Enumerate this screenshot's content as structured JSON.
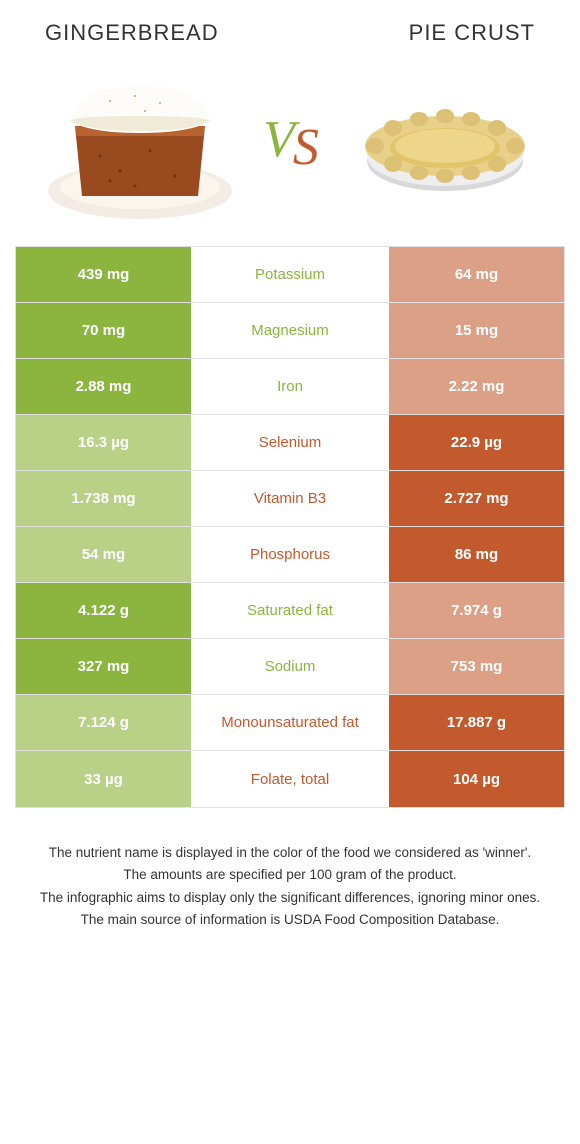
{
  "colors": {
    "left": "#8bb53f",
    "right": "#c25a2e",
    "left_dim": "#b8d186",
    "right_dim": "#dba085",
    "border": "#e0e0e0"
  },
  "header": {
    "left_title": "GINGERBREAD",
    "right_title": "PIE CRUST",
    "vs": "VS"
  },
  "rows": [
    {
      "label": "Potassium",
      "left": "439 mg",
      "right": "64 mg",
      "winner": "left"
    },
    {
      "label": "Magnesium",
      "left": "70 mg",
      "right": "15 mg",
      "winner": "left"
    },
    {
      "label": "Iron",
      "left": "2.88 mg",
      "right": "2.22 mg",
      "winner": "left"
    },
    {
      "label": "Selenium",
      "left": "16.3 µg",
      "right": "22.9 µg",
      "winner": "right"
    },
    {
      "label": "Vitamin B3",
      "left": "1.738 mg",
      "right": "2.727 mg",
      "winner": "right"
    },
    {
      "label": "Phosphorus",
      "left": "54 mg",
      "right": "86 mg",
      "winner": "right"
    },
    {
      "label": "Saturated fat",
      "left": "4.122 g",
      "right": "7.974 g",
      "winner": "left"
    },
    {
      "label": "Sodium",
      "left": "327 mg",
      "right": "753 mg",
      "winner": "left"
    },
    {
      "label": "Monounsaturated fat",
      "left": "7.124 g",
      "right": "17.887 g",
      "winner": "right"
    },
    {
      "label": "Folate, total",
      "left": "33 µg",
      "right": "104 µg",
      "winner": "right"
    }
  ],
  "footnotes": [
    "The nutrient name is displayed in the color of the food we considered as 'winner'.",
    "The amounts are specified per 100 gram of the product.",
    "The infographic aims to display only the significant differences, ignoring minor ones.",
    "The main source of information is USDA Food Composition Database."
  ]
}
